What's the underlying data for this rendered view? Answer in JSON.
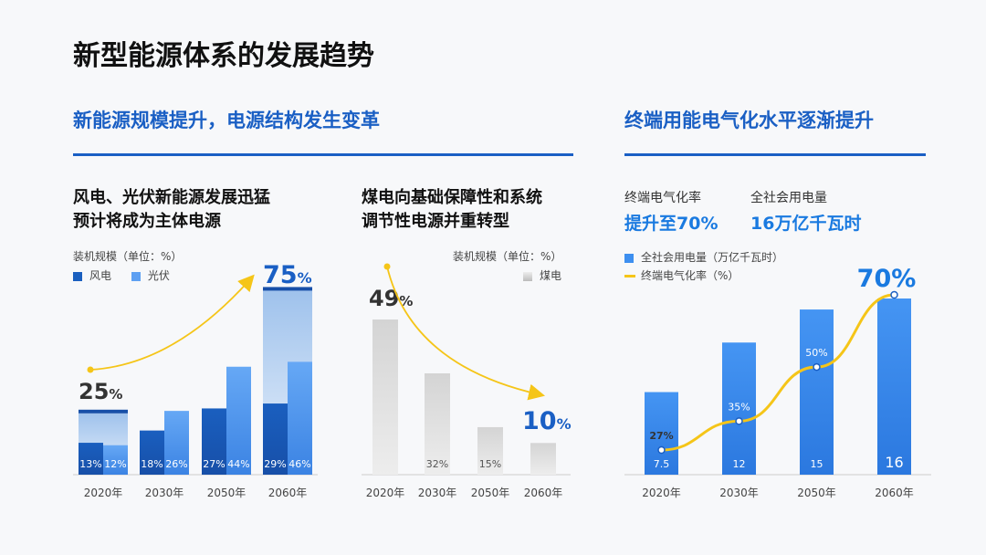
{
  "page": {
    "title": "新型能源体系的发展趋势",
    "left_section_title": "新能源规模提升，电源结构发生变革",
    "right_section_title": "终端用能电气化水平逐渐提升"
  },
  "panel1": {
    "heading_line1": "风电、光伏新能源发展迅猛",
    "heading_line2": "预计将成为主体电源",
    "unit_label": "装机规模（单位：%）",
    "legend": [
      "风电",
      "光伏"
    ],
    "start_callout_value": "25",
    "end_callout_value": "75",
    "percent_sign": "%"
  },
  "panel2": {
    "heading_line1": "煤电向基础保障性和系统",
    "heading_line2": "调节性电源并重转型",
    "unit_label": "装机规模（单位：%）",
    "legend": [
      "煤电"
    ],
    "start_callout_value": "49",
    "end_callout_value": "10",
    "percent_sign": "%"
  },
  "panel3": {
    "kpi1_label": "终端电气化率",
    "kpi1_value": "提升至70%",
    "kpi2_label": "全社会用电量",
    "kpi2_value": "16万亿千瓦时",
    "legend": [
      "全社会用电量（万亿千瓦时）",
      "终端电气化率（%）"
    ],
    "end_callout_value": "70%"
  },
  "colors": {
    "accent": "#1a5fc4",
    "wind": "#1a5fbf",
    "solar": "#5ea0f2",
    "coal": "#cfcfcf",
    "line": "#f5c518",
    "bar3": "#3d8ff0"
  },
  "chart_data": [
    {
      "type": "bar",
      "title": "风电、光伏新能源发展迅猛 预计将成为主体电源",
      "ylabel": "装机规模（单位：%）",
      "categories": [
        "2020年",
        "2030年",
        "2050年",
        "2060年"
      ],
      "series": [
        {
          "name": "风电",
          "values": [
            13,
            18,
            27,
            29
          ],
          "labels": [
            "13%",
            "18%",
            "27%",
            "29%"
          ]
        },
        {
          "name": "光伏",
          "values": [
            12,
            26,
            44,
            46
          ],
          "labels": [
            "12%",
            "26%",
            "44%",
            "46%"
          ]
        }
      ],
      "stacked_totals": {
        "2020年": 25,
        "2060年": 75
      },
      "ylim": [
        0,
        80
      ]
    },
    {
      "type": "bar",
      "title": "煤电向基础保障性和系统调节性电源并重转型",
      "ylabel": "装机规模（单位：%）",
      "categories": [
        "2020年",
        "2030年",
        "2050年",
        "2060年"
      ],
      "series": [
        {
          "name": "煤电",
          "values": [
            49,
            32,
            15,
            10
          ],
          "labels": [
            "",
            "32%",
            "15%",
            ""
          ]
        }
      ],
      "ylim": [
        0,
        50
      ]
    },
    {
      "type": "bar",
      "title": "终端用能电气化水平逐渐提升",
      "categories": [
        "2020年",
        "2030年",
        "2050年",
        "2060年"
      ],
      "series": [
        {
          "name": "全社会用电量（万亿千瓦时）",
          "values": [
            7.5,
            12,
            15,
            16
          ],
          "labels": [
            "7.5",
            "12",
            "15",
            "16"
          ]
        },
        {
          "name": "终端电气化率（%）",
          "type": "line",
          "values": [
            27,
            35,
            50,
            70
          ],
          "labels": [
            "27%",
            "35%",
            "50%",
            "70%"
          ]
        }
      ],
      "ylim": [
        0,
        20
      ]
    }
  ]
}
